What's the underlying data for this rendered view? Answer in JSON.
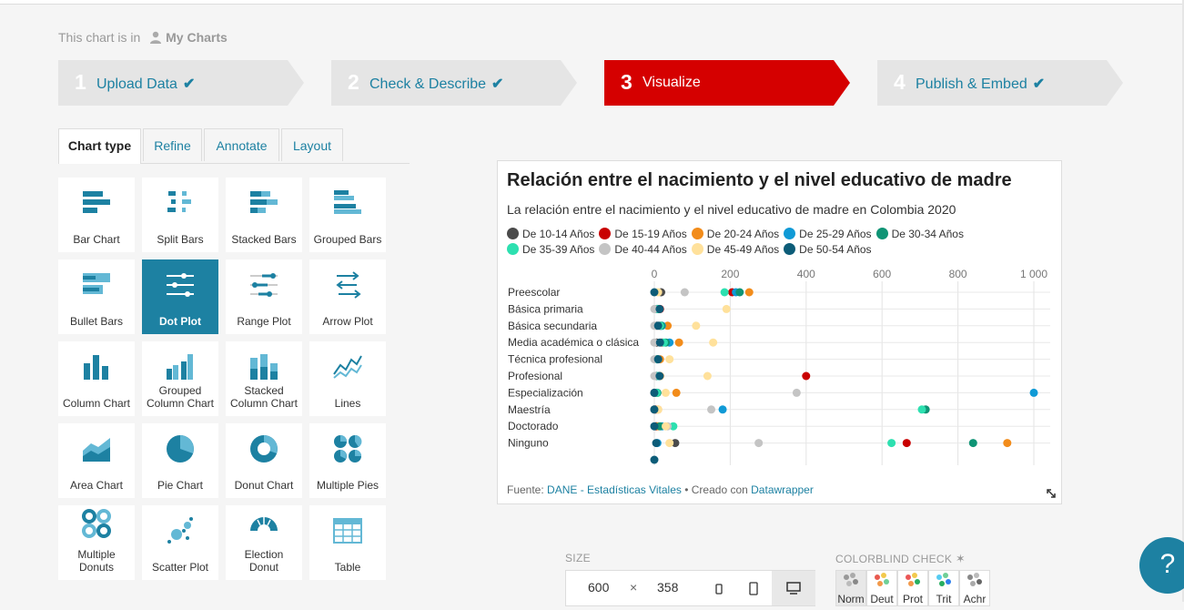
{
  "location": {
    "prefix": "This chart is in",
    "folder": "My Charts"
  },
  "steps": [
    {
      "num": "1",
      "label": "Upload Data",
      "check": "✔"
    },
    {
      "num": "2",
      "label": "Check & Describe",
      "check": "✔"
    },
    {
      "num": "3",
      "label": "Visualize",
      "check": ""
    },
    {
      "num": "4",
      "label": "Publish & Embed",
      "check": "✔"
    }
  ],
  "tabs": [
    "Chart type",
    "Refine",
    "Annotate",
    "Layout"
  ],
  "chart_types": [
    [
      "Bar Chart"
    ],
    [
      "Split Bars"
    ],
    [
      "Stacked Bars"
    ],
    [
      "Grouped Bars"
    ],
    [
      "Bullet Bars"
    ],
    [
      "Dot Plot"
    ],
    [
      "Range Plot"
    ],
    [
      "Arrow Plot"
    ],
    [
      "Column Chart"
    ],
    [
      "Grouped",
      "Column Chart"
    ],
    [
      "Stacked",
      "Column Chart"
    ],
    [
      "Lines"
    ],
    [
      "Area Chart"
    ],
    [
      "Pie Chart"
    ],
    [
      "Donut Chart"
    ],
    [
      "Multiple Pies"
    ],
    [
      "Multiple",
      "Donuts"
    ],
    [
      "Scatter Plot"
    ],
    [
      "Election",
      "Donut"
    ],
    [
      "Table"
    ]
  ],
  "chart": {
    "title": "Relación entre el nacimiento y el nivel educativo de madre",
    "subtitle": "La relación entre el nacimiento y el nivel educativo de madre en Colombia 2020",
    "source_label": "Fuente:",
    "source_name": "DANE - Estadísticas Vitales",
    "separator": " • Creado con ",
    "tool": "Datawrapper"
  },
  "chart_data": {
    "type": "scatter",
    "subtype": "dot plot",
    "title": "Relación entre el nacimiento y el nivel educativo de madre",
    "subtitle": "La relación entre el nacimiento y el nivel educativo de madre en Colombia 2020",
    "x_ticks": [
      "0",
      "200",
      "400",
      "600",
      "800",
      "1 000"
    ],
    "xlim": [
      0,
      1000
    ],
    "grid": true,
    "legend_position": "top",
    "categories": [
      "Preescolar",
      "Básica primaria",
      "Básica secundaria",
      "Media académica o clásica",
      "Técnica profesional",
      "Profesional",
      "Especialización",
      "Maestría",
      "Doctorado",
      "Ninguno"
    ],
    "series": [
      {
        "name": "De 10-14 Años",
        "color": "#4b4b4b",
        "values": [
          18,
          6,
          6,
          6,
          6,
          6,
          0,
          0,
          6,
          55
        ]
      },
      {
        "name": "De 15-19 Años",
        "color": "#c90000",
        "values": [
          205,
          15,
          15,
          20,
          8,
          400,
          6,
          4,
          4,
          665
        ]
      },
      {
        "name": "De 20-24 Años",
        "color": "#f28c1b",
        "values": [
          250,
          12,
          35,
          65,
          15,
          15,
          58,
          10,
          10,
          930
        ]
      },
      {
        "name": "De 25-29 Años",
        "color": "#109ad6",
        "values": [
          215,
          8,
          20,
          40,
          10,
          10,
          1000,
          180,
          20,
          8
        ]
      },
      {
        "name": "De 30-34 Años",
        "color": "#0f9475",
        "values": [
          225,
          10,
          18,
          30,
          8,
          12,
          8,
          715,
          15,
          840
        ]
      },
      {
        "name": "De 35-39 Años",
        "color": "#2de0b0",
        "values": [
          185,
          8,
          15,
          25,
          6,
          10,
          6,
          705,
          50,
          625
        ]
      },
      {
        "name": "De 40-44 Años",
        "color": "#c4c4c4",
        "values": [
          80,
          0,
          0,
          0,
          0,
          0,
          375,
          150,
          35,
          275
        ]
      },
      {
        "name": "De 45-49 Años",
        "color": "#ffe19b",
        "values": [
          10,
          190,
          110,
          155,
          40,
          140,
          30,
          10,
          30,
          40
        ]
      },
      {
        "name": "De 50-54 Años",
        "color": "#0c5c78",
        "values": [
          0,
          14,
          10,
          15,
          10,
          14,
          0,
          0,
          0,
          5
        ]
      }
    ]
  },
  "size": {
    "label": "SIZE",
    "width": "600",
    "times": "×",
    "height": "358"
  },
  "colorblind": {
    "label": "COLORBLIND CHECK",
    "modes": [
      "Norm",
      "Deut",
      "Prot",
      "Trit",
      "Achr"
    ]
  },
  "help_label": "?"
}
